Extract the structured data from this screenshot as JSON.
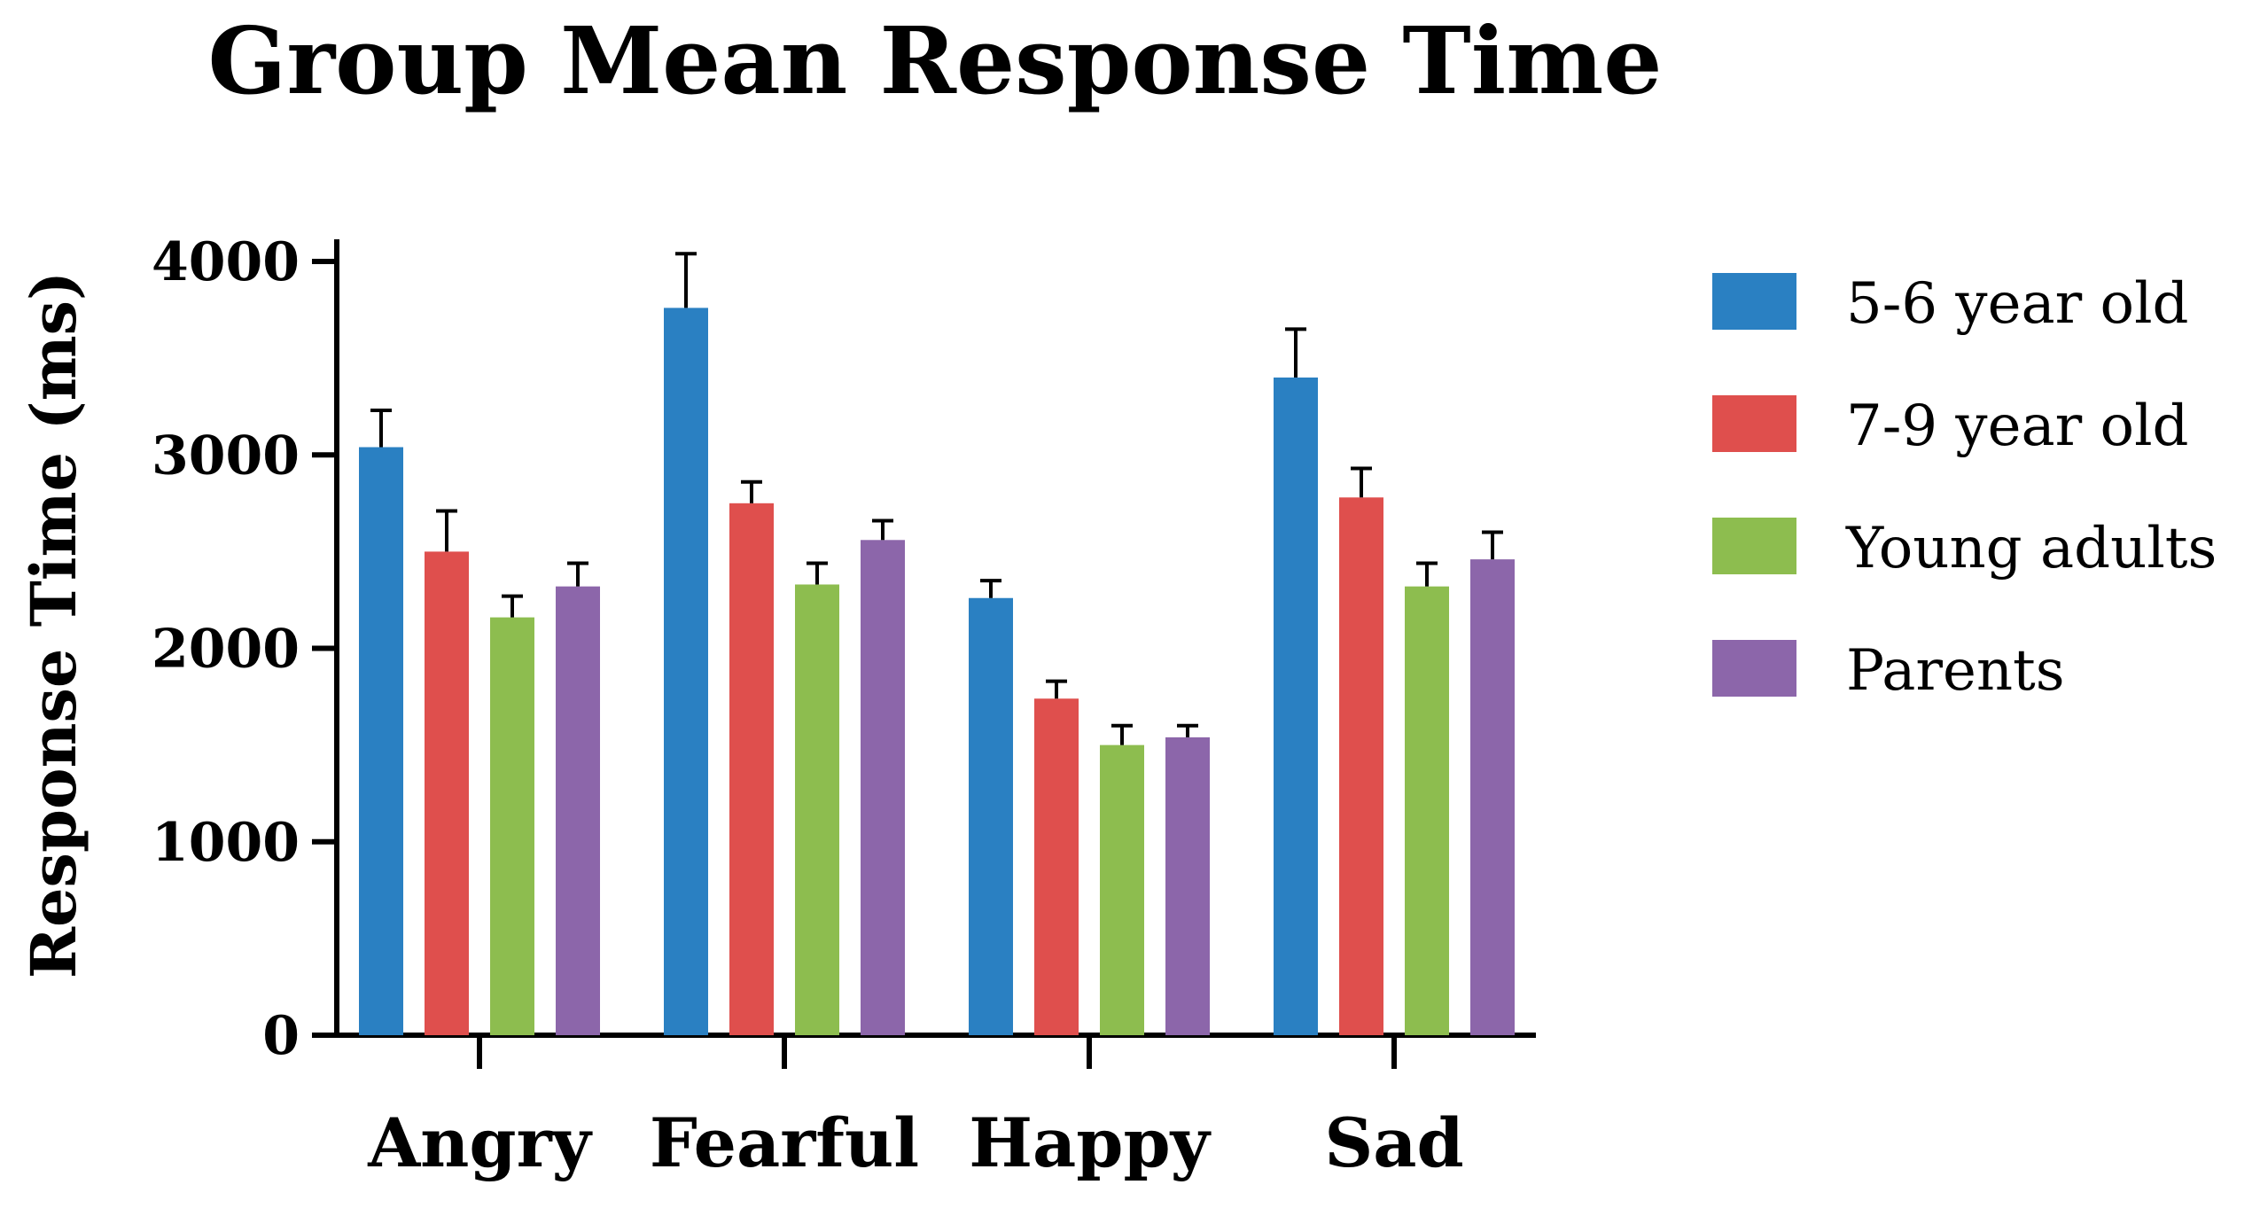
{
  "chart_data": {
    "type": "bar",
    "title": "Group Mean Response Time",
    "xlabel": "",
    "ylabel": "Response Time (ms)",
    "ylim": [
      0,
      4000
    ],
    "yticks": [
      0,
      1000,
      2000,
      3000,
      4000
    ],
    "ytick_labels": [
      "0",
      "1000",
      "2000",
      "3000",
      "4000"
    ],
    "grid": false,
    "legend_position": "right",
    "categories": [
      "Angry",
      "Fearful",
      "Happy",
      "Sad"
    ],
    "series": [
      {
        "name": "5-6 year old",
        "color": "#2a80c2",
        "values": [
          3040,
          3760,
          2260,
          3400
        ],
        "errors": [
          190,
          280,
          90,
          250
        ]
      },
      {
        "name": "7-9 year old",
        "color": "#df4f4d",
        "values": [
          2500,
          2750,
          1740,
          2780
        ],
        "errors": [
          210,
          110,
          90,
          150
        ]
      },
      {
        "name": "Young adults",
        "color": "#8dbd4f",
        "values": [
          2160,
          2330,
          1500,
          2320
        ],
        "errors": [
          110,
          110,
          100,
          120
        ]
      },
      {
        "name": "Parents",
        "color": "#8c66aa",
        "values": [
          2320,
          2560,
          1540,
          2460
        ],
        "errors": [
          120,
          100,
          60,
          140
        ]
      }
    ]
  }
}
